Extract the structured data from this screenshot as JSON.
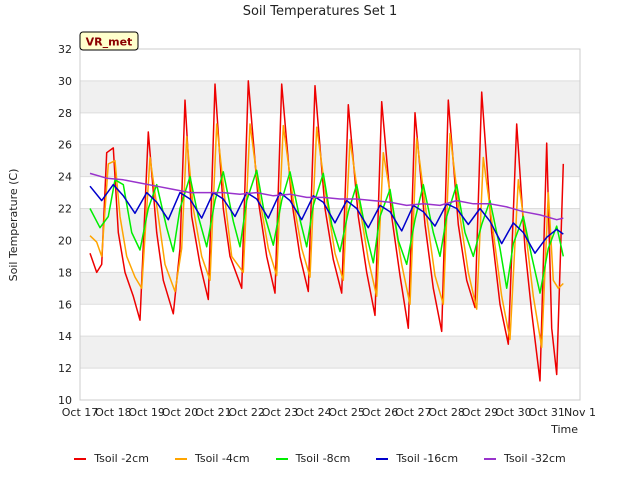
{
  "chart_data": {
    "type": "line",
    "title": "Soil Temperatures Set 1",
    "xlabel": "Time",
    "ylabel": "Soil Temperature (C)",
    "badge": "VR_met",
    "ylim": [
      10,
      32
    ],
    "yticks": [
      10,
      12,
      14,
      16,
      18,
      20,
      22,
      24,
      26,
      28,
      30,
      32
    ],
    "xlim": [
      0,
      15
    ],
    "xtick_labels": [
      "Oct 17",
      "Oct 18",
      "Oct 19",
      "Oct 20",
      "Oct 21",
      "Oct 22",
      "Oct 23",
      "Oct 24",
      "Oct 25",
      "Oct 26",
      "Oct 27",
      "Oct 28",
      "Oct 29",
      "Oct 30",
      "Oct 31",
      "Nov 1"
    ],
    "grid": true,
    "legend_position": "bottom",
    "colors": {
      "background_band": "#f0f0f0",
      "badge_fill": "#ffffcc",
      "badge_text": "#8b0000"
    },
    "series": [
      {
        "name": "Tsoil -2cm",
        "color": "#ee0000",
        "x": [
          0.3,
          0.5,
          0.65,
          0.8,
          1.0,
          1.15,
          1.35,
          1.6,
          1.8,
          2.05,
          2.3,
          2.5,
          2.8,
          3.0,
          3.15,
          3.35,
          3.6,
          3.85,
          4.05,
          4.3,
          4.5,
          4.85,
          5.05,
          5.35,
          5.6,
          5.85,
          6.05,
          6.35,
          6.6,
          6.85,
          7.05,
          7.35,
          7.6,
          7.85,
          8.05,
          8.35,
          8.6,
          8.85,
          9.05,
          9.35,
          9.6,
          9.85,
          10.05,
          10.35,
          10.6,
          10.85,
          11.05,
          11.35,
          11.6,
          11.85,
          12.05,
          12.35,
          12.6,
          12.85,
          13.1,
          13.35,
          13.55,
          13.8,
          14.0,
          14.15,
          14.3,
          14.5
        ],
        "y": [
          19.2,
          18.0,
          18.5,
          25.5,
          25.8,
          20.5,
          18.0,
          16.5,
          15.0,
          26.8,
          20.5,
          17.5,
          15.4,
          19.5,
          28.8,
          21.5,
          18.5,
          16.3,
          29.8,
          22.0,
          19.0,
          17.0,
          30.0,
          22.5,
          19.0,
          16.7,
          29.8,
          22.5,
          19.0,
          16.8,
          29.7,
          22.0,
          18.8,
          16.7,
          28.5,
          21.5,
          18.0,
          15.3,
          28.7,
          21.5,
          17.8,
          14.5,
          28.0,
          21.0,
          17.0,
          14.3,
          28.8,
          21.0,
          17.5,
          15.8,
          29.3,
          20.5,
          16.0,
          13.5,
          27.3,
          19.5,
          15.5,
          11.2,
          26.1,
          14.5,
          11.6,
          24.8
        ]
      },
      {
        "name": "Tsoil -4cm",
        "color": "#ffa500",
        "x": [
          0.3,
          0.5,
          0.65,
          0.85,
          1.05,
          1.2,
          1.4,
          1.65,
          1.85,
          2.1,
          2.35,
          2.55,
          2.85,
          3.05,
          3.2,
          3.4,
          3.65,
          3.9,
          4.1,
          4.35,
          4.55,
          4.9,
          5.1,
          5.4,
          5.65,
          5.9,
          6.1,
          6.4,
          6.65,
          6.9,
          7.1,
          7.4,
          7.65,
          7.9,
          8.1,
          8.4,
          8.65,
          8.9,
          9.1,
          9.4,
          9.65,
          9.9,
          10.1,
          10.4,
          10.65,
          10.9,
          11.1,
          11.4,
          11.65,
          11.9,
          12.1,
          12.4,
          12.65,
          12.9,
          13.15,
          13.4,
          13.6,
          13.85,
          14.05,
          14.2,
          14.35,
          14.5
        ],
        "y": [
          20.3,
          19.9,
          19.0,
          24.8,
          25.0,
          21.5,
          19.0,
          17.7,
          17.0,
          25.2,
          21.5,
          18.5,
          16.8,
          19.5,
          26.5,
          22.0,
          19.0,
          17.5,
          27.3,
          22.5,
          19.0,
          18.0,
          27.3,
          22.5,
          19.5,
          17.8,
          27.2,
          22.5,
          19.5,
          17.7,
          27.1,
          22.5,
          19.2,
          17.5,
          26.3,
          22.0,
          18.8,
          16.5,
          25.5,
          21.8,
          18.5,
          16.0,
          26.4,
          21.5,
          17.8,
          16.0,
          26.7,
          21.5,
          18.0,
          15.7,
          25.2,
          20.5,
          16.5,
          13.8,
          23.8,
          20.0,
          16.5,
          13.3,
          23.0,
          17.5,
          17.0,
          17.3
        ]
      },
      {
        "name": "Tsoil -8cm",
        "color": "#00ee00",
        "x": [
          0.3,
          0.6,
          0.85,
          1.05,
          1.3,
          1.55,
          1.8,
          2.05,
          2.3,
          2.6,
          2.8,
          3.0,
          3.3,
          3.55,
          3.8,
          4.05,
          4.3,
          4.6,
          4.8,
          5.0,
          5.3,
          5.55,
          5.8,
          6.05,
          6.3,
          6.6,
          6.8,
          7.0,
          7.3,
          7.55,
          7.8,
          8.05,
          8.3,
          8.6,
          8.8,
          9.0,
          9.3,
          9.55,
          9.8,
          10.05,
          10.3,
          10.6,
          10.8,
          11.0,
          11.3,
          11.55,
          11.8,
          12.05,
          12.3,
          12.6,
          12.8,
          13.0,
          13.3,
          13.55,
          13.8,
          14.05,
          14.3,
          14.5
        ],
        "y": [
          22.0,
          20.8,
          21.5,
          23.8,
          23.5,
          20.5,
          19.4,
          22.0,
          23.5,
          20.8,
          19.3,
          22.0,
          24.0,
          21.5,
          19.6,
          22.5,
          24.3,
          21.2,
          19.6,
          22.5,
          24.4,
          21.5,
          19.7,
          22.5,
          24.3,
          21.3,
          19.6,
          22.2,
          24.2,
          21.0,
          19.3,
          21.8,
          23.5,
          20.3,
          18.6,
          21.5,
          23.2,
          20.0,
          18.5,
          21.3,
          23.5,
          20.5,
          19.0,
          21.5,
          23.5,
          20.5,
          19.0,
          21.0,
          22.5,
          19.5,
          17.0,
          19.8,
          21.5,
          19.0,
          16.7,
          19.5,
          20.9,
          19.0
        ]
      },
      {
        "name": "Tsoil -16cm",
        "color": "#0000cc",
        "x": [
          0.3,
          0.65,
          1.0,
          1.3,
          1.65,
          2.0,
          2.3,
          2.65,
          3.0,
          3.3,
          3.65,
          4.0,
          4.3,
          4.65,
          5.0,
          5.3,
          5.65,
          6.0,
          6.3,
          6.65,
          7.0,
          7.3,
          7.65,
          8.0,
          8.3,
          8.65,
          9.0,
          9.3,
          9.65,
          10.0,
          10.3,
          10.65,
          11.0,
          11.3,
          11.65,
          12.0,
          12.3,
          12.65,
          13.0,
          13.3,
          13.65,
          14.0,
          14.3,
          14.5
        ],
        "y": [
          23.4,
          22.5,
          23.5,
          22.8,
          21.7,
          23.0,
          22.4,
          21.3,
          23.0,
          22.6,
          21.4,
          23.0,
          22.6,
          21.5,
          23.0,
          22.6,
          21.4,
          23.0,
          22.5,
          21.3,
          22.8,
          22.4,
          21.1,
          22.5,
          22.0,
          20.8,
          22.2,
          21.8,
          20.6,
          22.2,
          21.8,
          20.9,
          22.3,
          22.0,
          21.0,
          22.0,
          21.2,
          19.8,
          21.1,
          20.5,
          19.2,
          20.2,
          20.7,
          20.4
        ]
      },
      {
        "name": "Tsoil -32cm",
        "color": "#9933cc",
        "x": [
          0.3,
          0.8,
          1.3,
          1.8,
          2.3,
          2.8,
          3.3,
          3.8,
          4.3,
          4.8,
          5.3,
          5.8,
          6.3,
          6.8,
          7.3,
          7.8,
          8.3,
          8.8,
          9.3,
          9.8,
          10.3,
          10.8,
          11.3,
          11.8,
          12.3,
          12.8,
          13.3,
          13.8,
          14.3,
          14.5
        ],
        "y": [
          24.2,
          23.9,
          23.8,
          23.6,
          23.4,
          23.2,
          23.0,
          23.0,
          23.0,
          22.9,
          23.0,
          22.8,
          22.9,
          22.7,
          22.7,
          22.6,
          22.6,
          22.5,
          22.4,
          22.2,
          22.3,
          22.2,
          22.5,
          22.3,
          22.3,
          22.1,
          21.8,
          21.6,
          21.3,
          21.4
        ]
      }
    ]
  }
}
